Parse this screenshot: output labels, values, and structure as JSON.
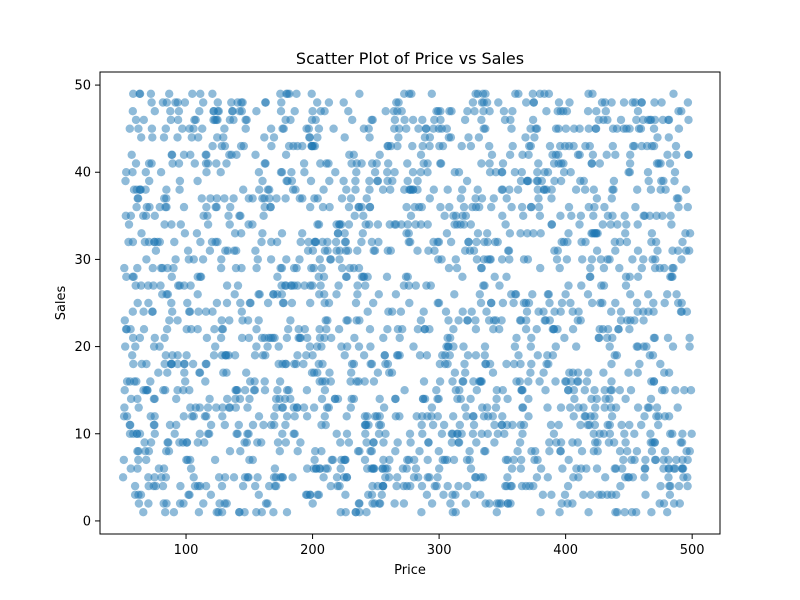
{
  "chart_data": {
    "type": "scatter",
    "title": "Scatter Plot of Price vs Sales",
    "xlabel": "Price",
    "ylabel": "Sales",
    "xlim": [
      32,
      522
    ],
    "ylim": [
      -1.5,
      51.5
    ],
    "xticks": [
      100,
      200,
      300,
      400,
      500
    ],
    "yticks": [
      0,
      10,
      20,
      30,
      40,
      50
    ],
    "x_range_of_points": [
      50,
      500
    ],
    "y_range_of_points": [
      1,
      49
    ],
    "y_values_are_integers": true,
    "approx_point_count": 2000,
    "point_color": "#1f77b4",
    "point_alpha": 0.5,
    "grid": false,
    "legend": "none"
  }
}
